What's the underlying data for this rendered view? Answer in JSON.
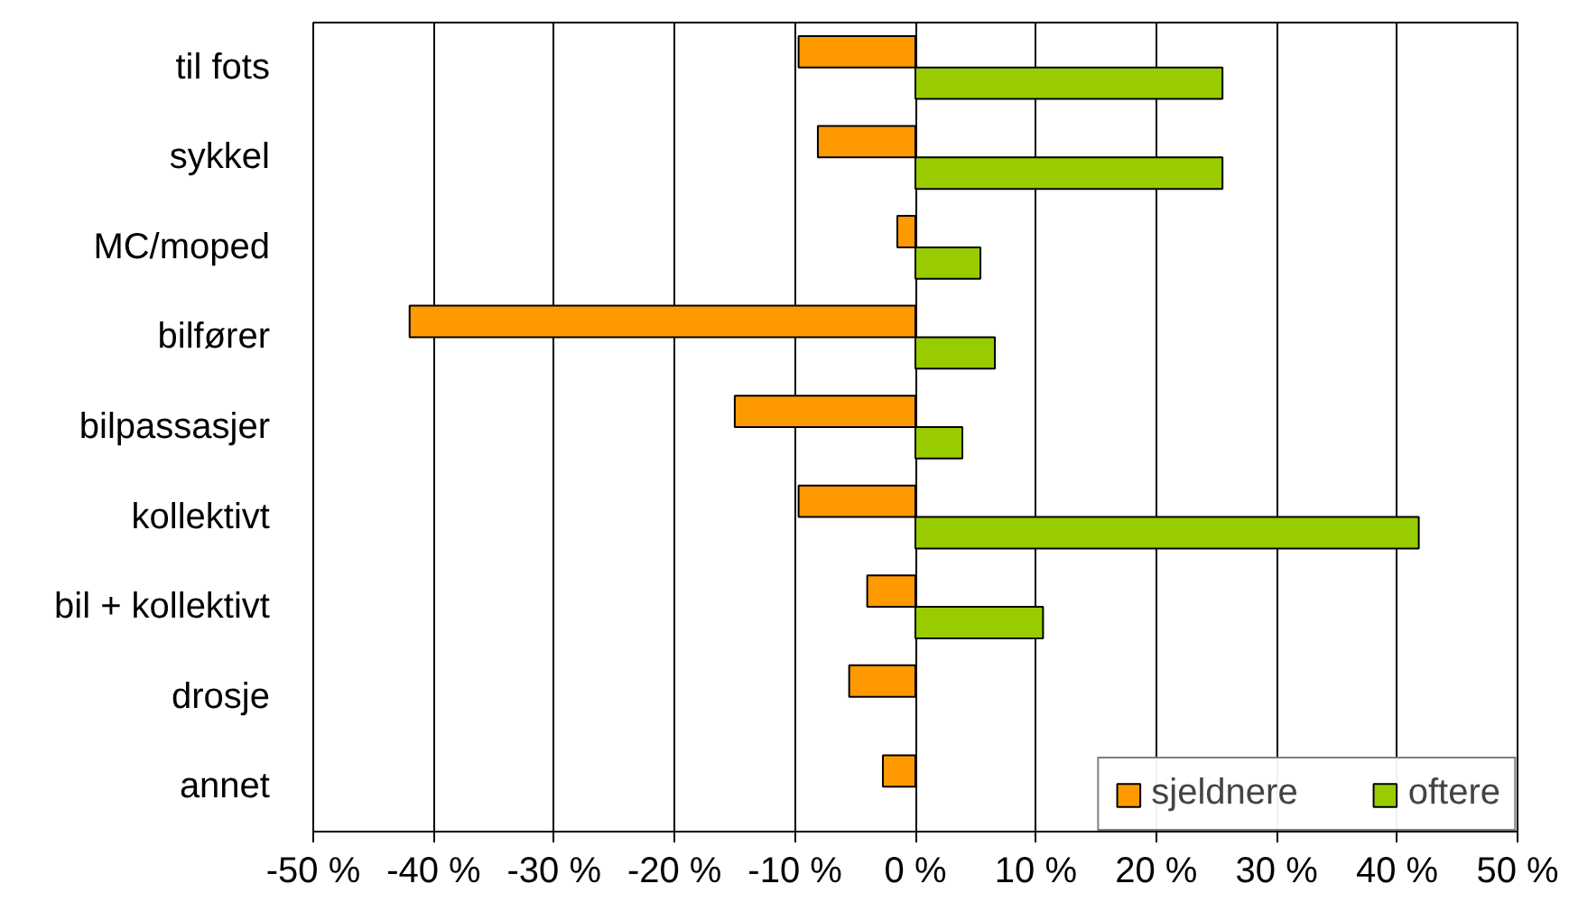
{
  "chart_data": {
    "type": "bar",
    "orientation": "horizontal",
    "categories": [
      "til fots",
      "sykkel",
      "MC/moped",
      "bilfører",
      "bilpassasjer",
      "kollektivt",
      "bil + kollektivt",
      "drosje",
      "annet"
    ],
    "series": [
      {
        "name": "sjeldnere",
        "color": "#ff9900",
        "values": [
          -9.7,
          -8.1,
          -1.5,
          -42,
          -15,
          -9.7,
          -4,
          -5.5,
          -2.7
        ]
      },
      {
        "name": "oftere",
        "color": "#99cc00",
        "values": [
          25.5,
          25.5,
          5.4,
          6.6,
          3.9,
          41.8,
          10.6,
          null,
          null
        ]
      }
    ],
    "xlim": [
      -50,
      50
    ],
    "xticks": [
      {
        "value": -50,
        "label": "-50 %"
      },
      {
        "value": -40,
        "label": "-40 %"
      },
      {
        "value": -30,
        "label": "-30 %"
      },
      {
        "value": -20,
        "label": "-20 %"
      },
      {
        "value": -10,
        "label": "-10 %"
      },
      {
        "value": 0,
        "label": "0 %"
      },
      {
        "value": 10,
        "label": "10 %"
      },
      {
        "value": 20,
        "label": "20 %"
      },
      {
        "value": 30,
        "label": "30 %"
      },
      {
        "value": 40,
        "label": "40 %"
      },
      {
        "value": 50,
        "label": "50 %"
      }
    ],
    "grid": "x",
    "legend": "bottom right"
  }
}
